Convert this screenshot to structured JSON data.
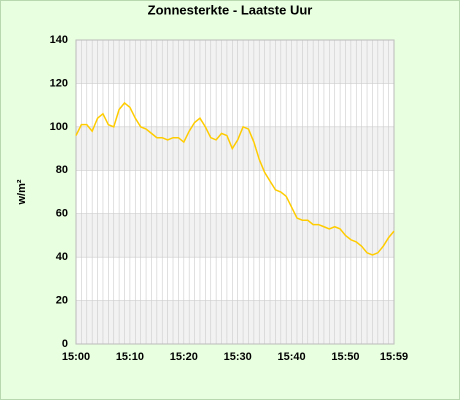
{
  "chart_data": {
    "type": "line",
    "title": "Zonnesterkte - Laatste Uur",
    "y_label": "w/m²",
    "categories": [
      "15:00",
      null,
      null,
      null,
      null,
      null,
      null,
      null,
      null,
      null,
      "15:10",
      null,
      null,
      null,
      null,
      null,
      null,
      null,
      null,
      null,
      "15:20",
      null,
      null,
      null,
      null,
      null,
      null,
      null,
      null,
      null,
      "15:30",
      null,
      null,
      null,
      null,
      null,
      null,
      null,
      null,
      null,
      "15:40",
      null,
      null,
      null,
      null,
      null,
      null,
      null,
      null,
      null,
      "15:50",
      null,
      null,
      null,
      null,
      null,
      null,
      null,
      null,
      "15:59"
    ],
    "values": [
      96,
      101,
      101,
      98,
      104,
      106,
      101,
      100,
      108,
      111,
      109,
      104,
      100,
      99,
      97,
      95,
      95,
      94,
      95,
      95,
      93,
      98,
      102,
      104,
      100,
      95,
      94,
      97,
      96,
      90,
      94,
      100,
      99,
      93,
      85,
      79,
      75,
      71,
      70,
      68,
      63,
      58,
      57,
      57,
      55,
      55,
      54,
      53,
      54,
      53,
      50,
      48,
      47,
      45,
      42,
      41,
      42,
      45,
      49,
      52
    ],
    "color": "#ffcc00",
    "band_color": "#f2f2f2",
    "ylim": [
      0,
      140
    ],
    "yticks": [
      0,
      20,
      40,
      60,
      80,
      100,
      120,
      140
    ],
    "grid": true
  }
}
